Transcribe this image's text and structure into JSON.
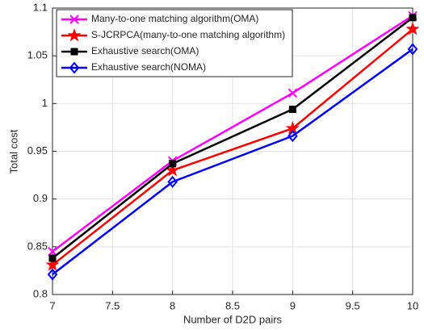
{
  "chart_data": {
    "type": "line",
    "x_label": "Number of D2D pairs",
    "y_label": "Total cost",
    "x": [
      7,
      8,
      9,
      10
    ],
    "series": [
      {
        "name": "Many-to-one matching algorithm(OMA)",
        "color": "#ff00ff",
        "marker": "x",
        "values": [
          0.845,
          0.94,
          1.011,
          1.092
        ]
      },
      {
        "name": "S-JCRPCA(many-to-one matching algorithm)",
        "color": "#ff0000",
        "marker": "star",
        "values": [
          0.831,
          0.93,
          0.974,
          1.078
        ]
      },
      {
        "name": "Exhaustive search(OMA)",
        "color": "#000000",
        "marker": "square",
        "values": [
          0.838,
          0.937,
          0.994,
          1.09
        ]
      },
      {
        "name": "Exhaustive search(NOMA)",
        "color": "#0000ff",
        "marker": "diamond",
        "values": [
          0.821,
          0.918,
          0.966,
          1.057
        ]
      }
    ],
    "xlim": [
      7,
      10
    ],
    "xticks": [
      7,
      7.5,
      8,
      8.5,
      9,
      9.5,
      10
    ],
    "ylim": [
      0.8,
      1.1
    ],
    "yticks": [
      0.8,
      0.85,
      0.9,
      0.95,
      1,
      1.05,
      1.1
    ],
    "grid": true,
    "legend": "top-left"
  }
}
